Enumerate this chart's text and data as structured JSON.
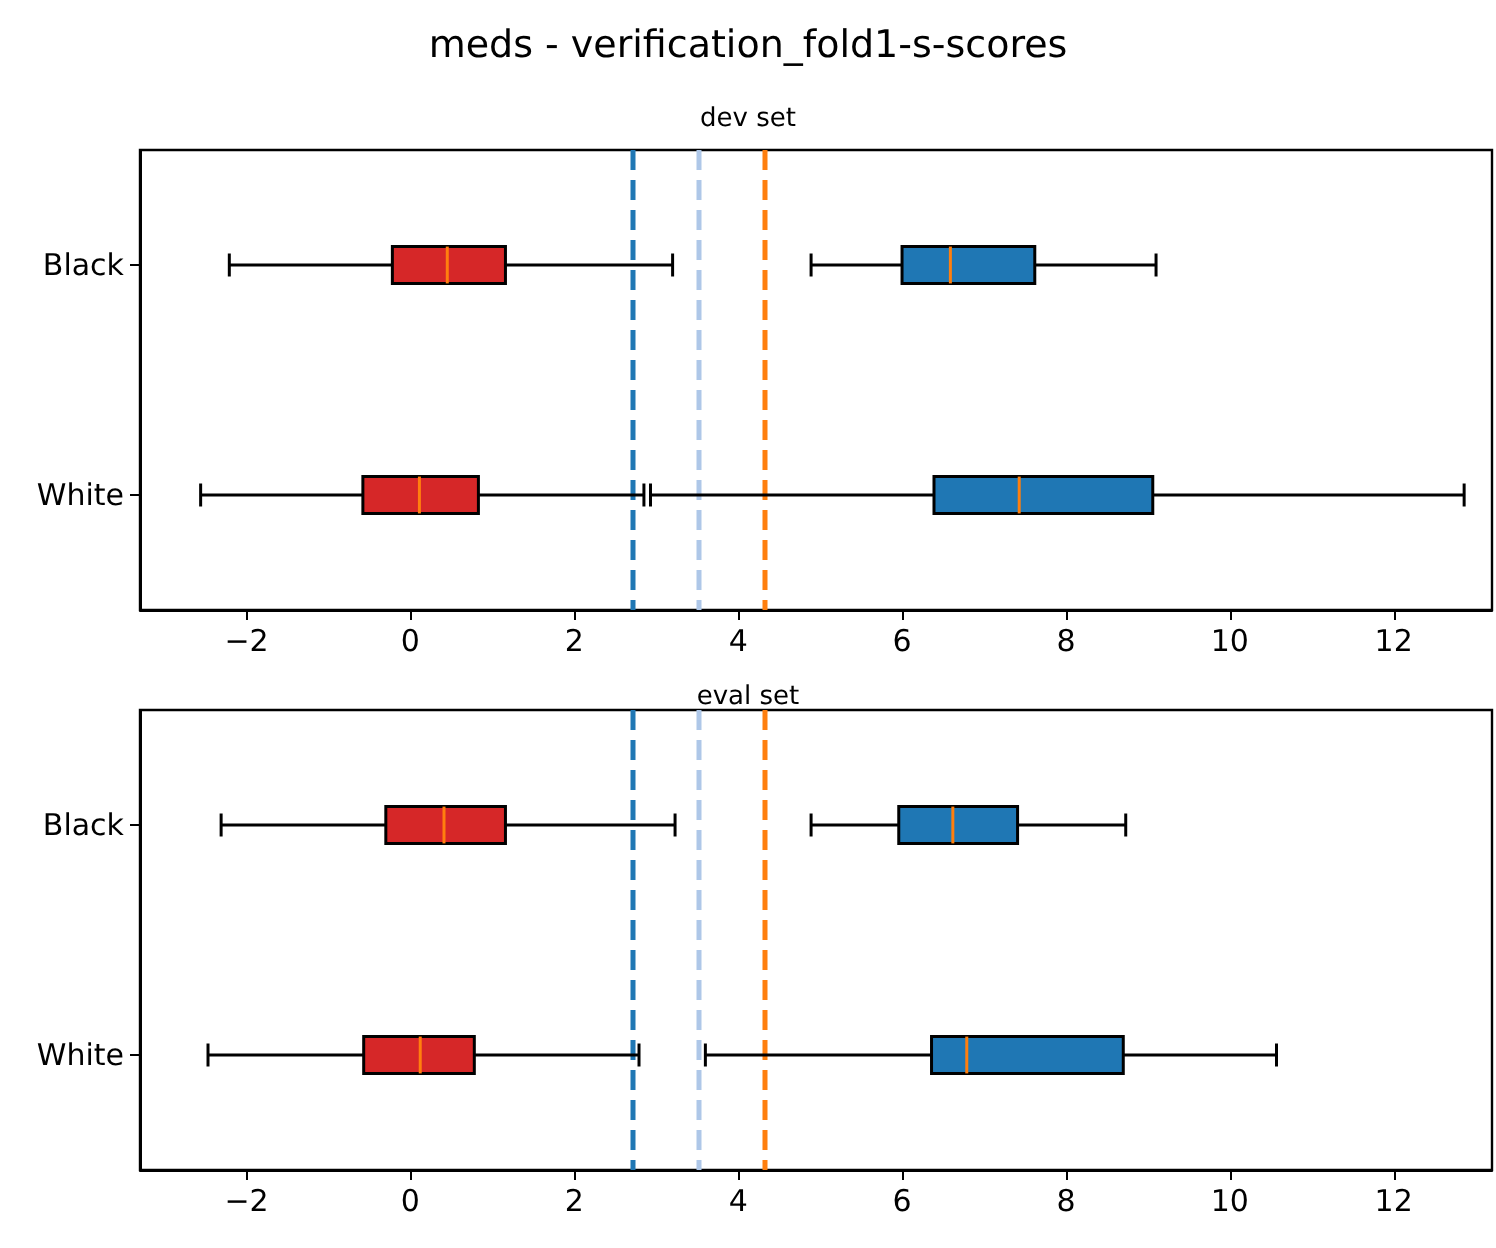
{
  "chart_data": [
    {
      "type": "box",
      "title": "meds - verification_fold1-s-scores",
      "subtitle": "dev set",
      "categories": [
        "Black",
        "White"
      ],
      "orientation": "horizontal",
      "xlim": [
        -3.3,
        13.2
      ],
      "xticks": [
        -2,
        0,
        2,
        4,
        6,
        8,
        10,
        12
      ],
      "grid": false,
      "series": [
        {
          "color": "#d62728",
          "boxes": [
            {
              "low": -2.21,
              "q1": -0.22,
              "median": 0.45,
              "q3": 1.16,
              "high": 3.2
            },
            {
              "low": -2.56,
              "q1": -0.58,
              "median": 0.11,
              "q3": 0.83,
              "high": 2.85
            }
          ]
        },
        {
          "color": "#1f77b4",
          "boxes": [
            {
              "low": 4.89,
              "q1": 6.0,
              "median": 6.59,
              "q3": 7.62,
              "high": 9.1
            },
            {
              "low": 2.93,
              "q1": 6.39,
              "median": 7.43,
              "q3": 9.06,
              "high": 12.86
            }
          ]
        }
      ],
      "ref_lines": [
        {
          "axis": "x",
          "value": 2.7,
          "color": "#1f77b4",
          "line_style": "dashed"
        },
        {
          "axis": "x",
          "value": 3.52,
          "color": "#aec7e8",
          "line_style": "dashed"
        },
        {
          "axis": "x",
          "value": 4.32,
          "color": "#ff7f0e",
          "line_style": "dashed"
        }
      ]
    },
    {
      "type": "box",
      "title": "eval set",
      "categories": [
        "Black",
        "White"
      ],
      "orientation": "horizontal",
      "xlim": [
        -3.3,
        13.2
      ],
      "xticks": [
        -2,
        0,
        2,
        4,
        6,
        8,
        10,
        12
      ],
      "grid": false,
      "series": [
        {
          "color": "#d62728",
          "boxes": [
            {
              "low": -2.31,
              "q1": -0.3,
              "median": 0.41,
              "q3": 1.16,
              "high": 3.23
            },
            {
              "low": -2.47,
              "q1": -0.57,
              "median": 0.12,
              "q3": 0.78,
              "high": 2.79
            }
          ]
        },
        {
          "color": "#1f77b4",
          "boxes": [
            {
              "low": 4.89,
              "q1": 5.96,
              "median": 6.62,
              "q3": 7.41,
              "high": 8.73
            },
            {
              "low": 3.6,
              "q1": 6.36,
              "median": 6.79,
              "q3": 8.7,
              "high": 10.57
            }
          ]
        }
      ],
      "ref_lines": [
        {
          "axis": "x",
          "value": 2.7,
          "color": "#1f77b4",
          "line_style": "dashed"
        },
        {
          "axis": "x",
          "value": 3.52,
          "color": "#aec7e8",
          "line_style": "dashed"
        },
        {
          "axis": "x",
          "value": 4.32,
          "color": "#ff7f0e",
          "line_style": "dashed"
        }
      ]
    }
  ]
}
